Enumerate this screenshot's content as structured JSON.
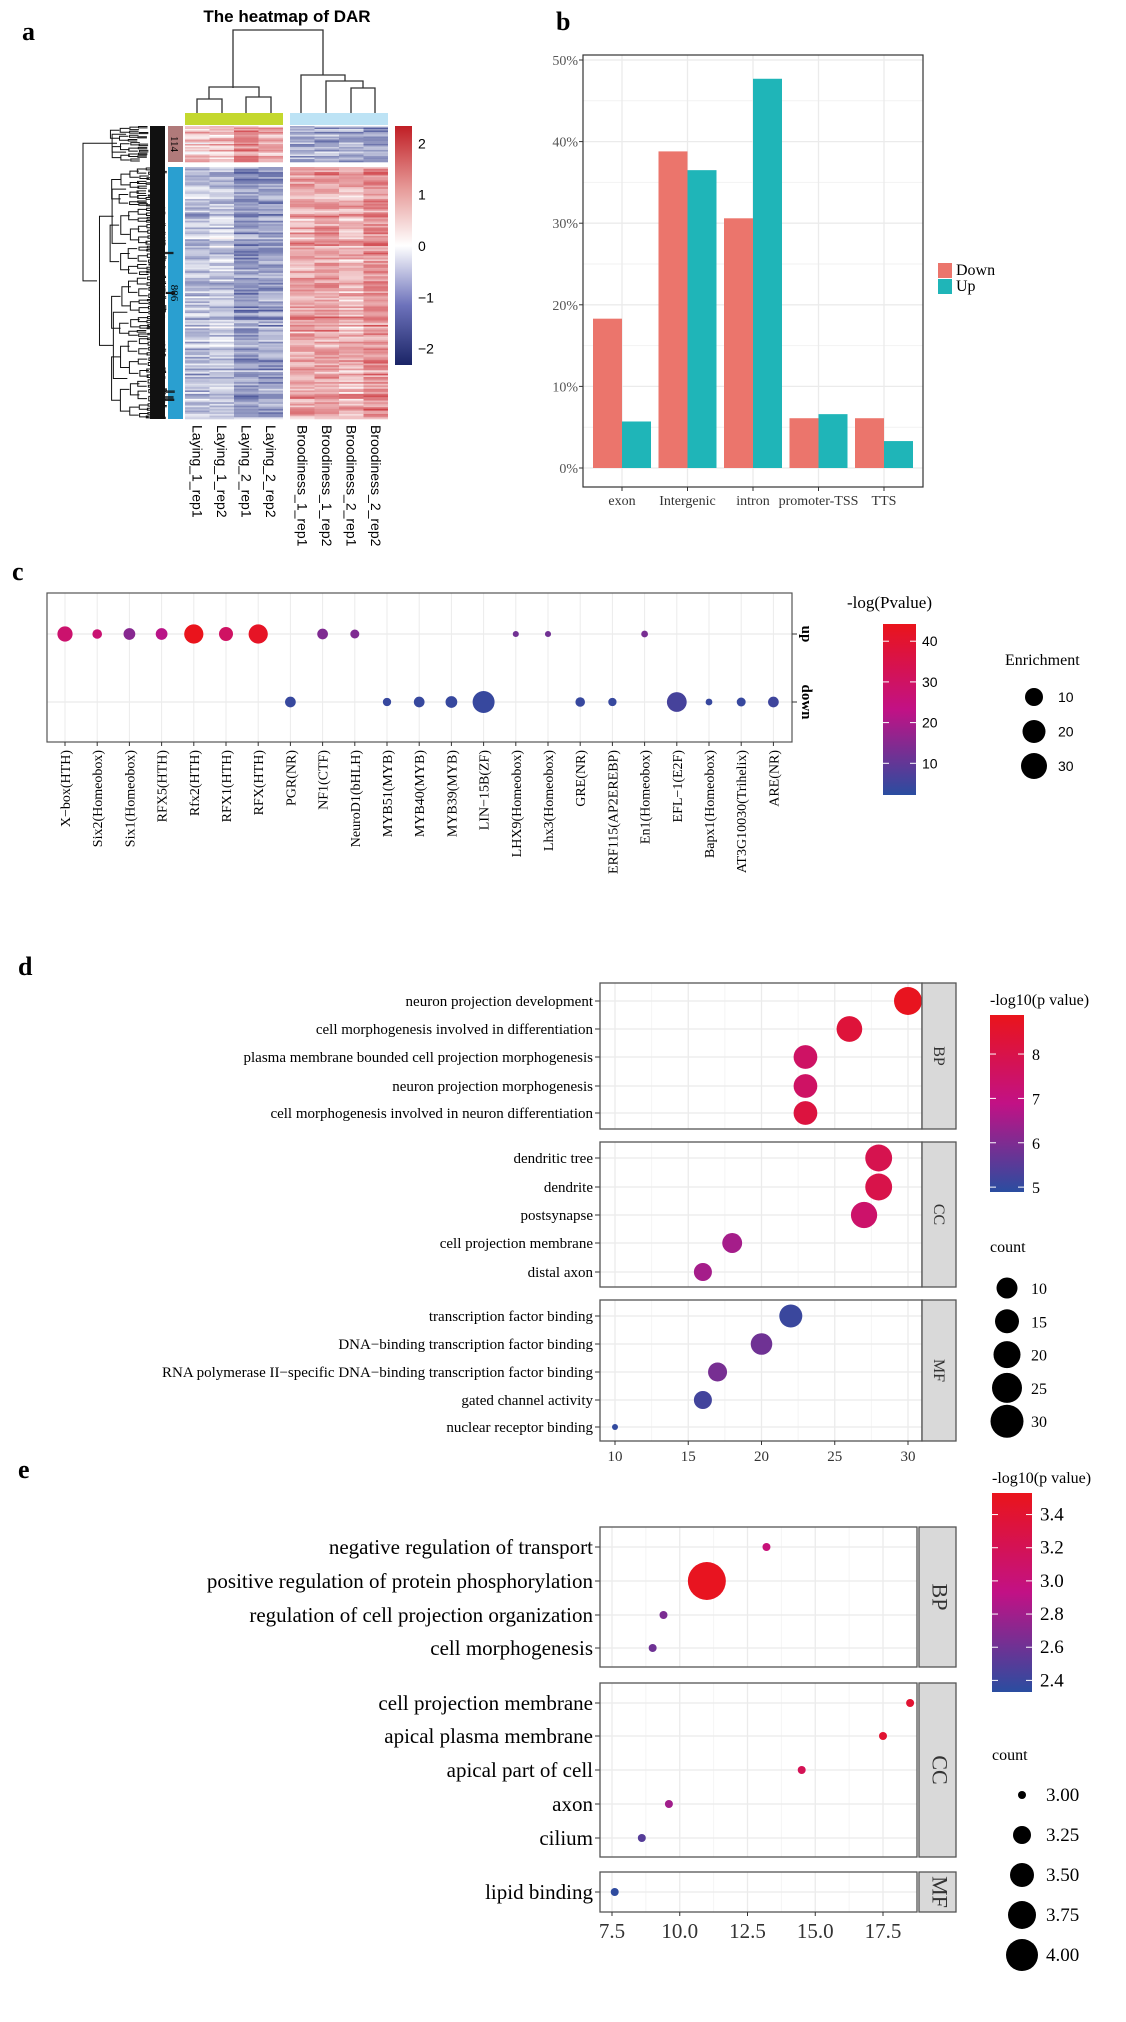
{
  "figure": {
    "panel_labels": [
      "a",
      "b",
      "c",
      "d",
      "e"
    ]
  },
  "colors": {
    "gradient": [
      "#2a4da0",
      "#c21185",
      "#ea141b"
    ],
    "heat_low": "#1d2a80",
    "heat_mid": "#ffffff",
    "heat_high": "#c8232a",
    "group_laying": "#c4d82e",
    "group_broodiness": "#bde3f5",
    "cluster_114": "#b07a7a",
    "cluster_806": "#2a9fd0",
    "down": "#eb756c",
    "up": "#1fb5b8",
    "strip": "#d9d9d9",
    "grid": "#ebebeb"
  },
  "chart_data": [
    {
      "panel": "a",
      "type": "heatmap",
      "title": "The heatmap of DAR",
      "columns": [
        "Laying_1_rep1",
        "Laying_1_rep2",
        "Laying_2_rep1",
        "Laying_2_rep2",
        "Broodiness_1_rep1",
        "Broodiness_1_rep2",
        "Broodiness_2_rep1",
        "Broodiness_2_rep2"
      ],
      "row_clusters": [
        {
          "label": "114",
          "count": 114
        },
        {
          "label": "806",
          "count": 806
        }
      ],
      "color_range": [
        -2.3,
        2.3
      ],
      "colorbar_ticks": [
        "2",
        "1",
        "0",
        "−1",
        "−2"
      ],
      "colorbar_values": [
        2,
        1,
        0,
        -1,
        -2
      ]
    },
    {
      "panel": "b",
      "type": "bar",
      "categories": [
        "exon",
        "Intergenic",
        "intron",
        "promoter-TSS",
        "TTS"
      ],
      "series": [
        {
          "name": "Down",
          "values": [
            18.3,
            38.8,
            30.6,
            6.1,
            6.1
          ]
        },
        {
          "name": "Up",
          "values": [
            5.7,
            36.5,
            47.7,
            6.6,
            3.3
          ]
        }
      ],
      "ylim": [
        0,
        50
      ],
      "yticks": [
        "0%",
        "10%",
        "20%",
        "30%",
        "40%",
        "50%"
      ],
      "legend": "right"
    },
    {
      "panel": "c",
      "type": "scatter",
      "categories": [
        "X−box(HTH)",
        "Six2(Homeobox)",
        "Six1(Homeobox)",
        "RFX5(HTH)",
        "Rfx2(HTH)",
        "RFX1(HTH)",
        "RFX(HTH)",
        "PGR(NR)",
        "NF1(CTF)",
        "NeuroD1(bHLH)",
        "MYB51(MYB)",
        "MYB40(MYB)",
        "MYB39(MYB)",
        "LIN−15B(ZF)",
        "LHX9(Homeobox)",
        "Lhx3(Homeobox)",
        "GRE(NR)",
        "ERF115(AP2EREBP)",
        "En1(Homeobox)",
        "EFL−1(E2F)",
        "Bapx1(Homeobox)",
        "AT3G10030(Trihelix)",
        "ARE(NR)"
      ],
      "rows": [
        "up",
        "down"
      ],
      "points": [
        {
          "i": 0,
          "row": "up",
          "pvalue": 28,
          "enrichment": 10
        },
        {
          "i": 1,
          "row": "up",
          "pvalue": 27,
          "enrichment": 4
        },
        {
          "i": 2,
          "row": "up",
          "pvalue": 15,
          "enrichment": 6
        },
        {
          "i": 3,
          "row": "up",
          "pvalue": 22,
          "enrichment": 6
        },
        {
          "i": 4,
          "row": "up",
          "pvalue": 44,
          "enrichment": 16
        },
        {
          "i": 5,
          "row": "up",
          "pvalue": 30,
          "enrichment": 8.5
        },
        {
          "i": 6,
          "row": "up",
          "pvalue": 42,
          "enrichment": 16
        },
        {
          "i": 8,
          "row": "up",
          "pvalue": 14,
          "enrichment": 5
        },
        {
          "i": 9,
          "row": "up",
          "pvalue": 14,
          "enrichment": 3.5
        },
        {
          "i": 14,
          "row": "up",
          "pvalue": 12,
          "enrichment": 1.6
        },
        {
          "i": 15,
          "row": "up",
          "pvalue": 12,
          "enrichment": 1.6
        },
        {
          "i": 18,
          "row": "up",
          "pvalue": 13,
          "enrichment": 2
        },
        {
          "i": 7,
          "row": "down",
          "pvalue": 4,
          "enrichment": 5
        },
        {
          "i": 10,
          "row": "down",
          "pvalue": 4,
          "enrichment": 3
        },
        {
          "i": 11,
          "row": "down",
          "pvalue": 4,
          "enrichment": 5
        },
        {
          "i": 12,
          "row": "down",
          "pvalue": 4,
          "enrichment": 6
        },
        {
          "i": 13,
          "row": "down",
          "pvalue": 4,
          "enrichment": 21
        },
        {
          "i": 16,
          "row": "down",
          "pvalue": 4,
          "enrichment": 4
        },
        {
          "i": 17,
          "row": "down",
          "pvalue": 4,
          "enrichment": 3
        },
        {
          "i": 19,
          "row": "down",
          "pvalue": 6,
          "enrichment": 17
        },
        {
          "i": 20,
          "row": "down",
          "pvalue": 4,
          "enrichment": 2
        },
        {
          "i": 21,
          "row": "down",
          "pvalue": 4,
          "enrichment": 3.5
        },
        {
          "i": 22,
          "row": "down",
          "pvalue": 5,
          "enrichment": 5
        }
      ],
      "color_title": "-log(Pvalue)",
      "color_range": [
        2.2,
        44.2
      ],
      "color_ticks": [
        10,
        20,
        30,
        40
      ],
      "size_title": "Enrichment",
      "size_ticks": [
        10,
        20,
        30
      ]
    },
    {
      "panel": "d",
      "type": "scatter",
      "facets": [
        {
          "name": "BP",
          "terms": [
            {
              "label": "neuron projection development",
              "x": 30,
              "count": 30,
              "p": 8.8
            },
            {
              "label": "cell morphogenesis involved in differentiation",
              "x": 26,
              "count": 26,
              "p": 8.3
            },
            {
              "label": "plasma membrane bounded cell projection morphogenesis",
              "x": 23,
              "count": 23,
              "p": 7.5
            },
            {
              "label": "neuron projection morphogenesis",
              "x": 23,
              "count": 23,
              "p": 7.5
            },
            {
              "label": "cell morphogenesis involved in neuron differentiation",
              "x": 23,
              "count": 23,
              "p": 8.2
            }
          ]
        },
        {
          "name": "CC",
          "terms": [
            {
              "label": "dendritic tree",
              "x": 28,
              "count": 28,
              "p": 7.9
            },
            {
              "label": "dendrite",
              "x": 28,
              "count": 28,
              "p": 8.0
            },
            {
              "label": "postsynapse",
              "x": 27,
              "count": 27,
              "p": 7.4
            },
            {
              "label": "cell projection membrane",
              "x": 18,
              "count": 18,
              "p": 6.5
            },
            {
              "label": "distal axon",
              "x": 16,
              "count": 16,
              "p": 6.5
            }
          ]
        },
        {
          "name": "MF",
          "terms": [
            {
              "label": "transcription factor binding",
              "x": 22,
              "count": 22,
              "p": 5.1
            },
            {
              "label": "DNA−binding transcription factor binding",
              "x": 20,
              "count": 20,
              "p": 5.8
            },
            {
              "label": "RNA polymerase II−specific DNA−binding transcription factor binding",
              "x": 17,
              "count": 17,
              "p": 5.9
            },
            {
              "label": "gated channel activity",
              "x": 16,
              "count": 16,
              "p": 5.2
            },
            {
              "label": "nuclear receptor binding",
              "x": 10,
              "count": 10,
              "p": 5.0
            }
          ]
        }
      ],
      "xlim": [
        9,
        31
      ],
      "xticks": [
        10,
        15,
        20,
        25,
        30
      ],
      "xtick_labels": [
        "10",
        "15",
        "20",
        "25",
        "30"
      ],
      "color_title": "-log10(p value)",
      "color_range": [
        4.89,
        8.88
      ],
      "color_ticks": [
        5,
        6,
        7,
        8
      ],
      "size_title": "count",
      "size_ticks": [
        10,
        15,
        20,
        25,
        30
      ]
    },
    {
      "panel": "e",
      "type": "scatter",
      "facets": [
        {
          "name": "BP",
          "terms": [
            {
              "label": "negative regulation of transport",
              "x": 13.2,
              "count": 3,
              "p": 3.0
            },
            {
              "label": "positive regulation of protein phosphorylation",
              "x": 11.0,
              "count": 4,
              "p": 3.5
            },
            {
              "label": "regulation of cell projection organization",
              "x": 9.4,
              "count": 3,
              "p": 2.65
            },
            {
              "label": "cell morphogenesis",
              "x": 9.0,
              "count": 3,
              "p": 2.6
            }
          ]
        },
        {
          "name": "CC",
          "terms": [
            {
              "label": "cell projection membrane",
              "x": 18.5,
              "count": 3,
              "p": 3.4
            },
            {
              "label": "apical plasma membrane",
              "x": 17.5,
              "count": 3,
              "p": 3.4
            },
            {
              "label": "apical part of cell",
              "x": 14.5,
              "count": 3,
              "p": 3.2
            },
            {
              "label": "axon",
              "x": 9.6,
              "count": 3,
              "p": 2.8
            },
            {
              "label": "cilium",
              "x": 8.6,
              "count": 3,
              "p": 2.5
            }
          ]
        },
        {
          "name": "MF",
          "terms": [
            {
              "label": "lipid binding",
              "x": 7.6,
              "count": 3,
              "p": 2.35
            }
          ]
        }
      ],
      "xlim": [
        7.05,
        18.75
      ],
      "xticks": [
        7.5,
        10,
        12.5,
        15,
        17.5
      ],
      "xtick_labels": [
        "7.5",
        "10.0",
        "12.5",
        "15.0",
        "17.5"
      ],
      "color_title": "-log10(p value)",
      "color_range": [
        2.33,
        3.53
      ],
      "color_ticks": [
        2.4,
        2.6,
        2.8,
        3.0,
        3.2,
        3.4
      ],
      "color_tick_labels": [
        "2.4",
        "2.6",
        "2.8",
        "3.0",
        "3.2",
        "3.4"
      ],
      "size_title": "count",
      "size_ticks": [
        3.0,
        3.25,
        3.5,
        3.75,
        4.0
      ],
      "size_tick_labels": [
        "3.00",
        "3.25",
        "3.50",
        "3.75",
        "4.00"
      ]
    }
  ]
}
